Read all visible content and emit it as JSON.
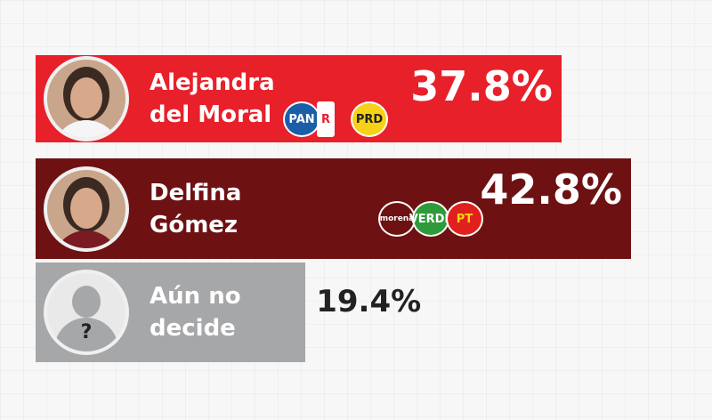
{
  "chart_data": {
    "type": "bar",
    "orientation": "horizontal",
    "categories": [
      "Alejandra del Moral",
      "Delfina Gómez",
      "Aún no decide"
    ],
    "values": [
      37.8,
      42.8,
      19.4
    ],
    "value_labels": [
      "37.8%",
      "42.8%",
      "19.4%"
    ],
    "colors": [
      "#e8202a",
      "#6e1112",
      "#a6a7a9"
    ],
    "parties": [
      [
        "PAN",
        "R",
        "PRD"
      ],
      [
        "morena",
        "VERDE",
        "PT"
      ]
    ],
    "unknown_mark": "?"
  }
}
